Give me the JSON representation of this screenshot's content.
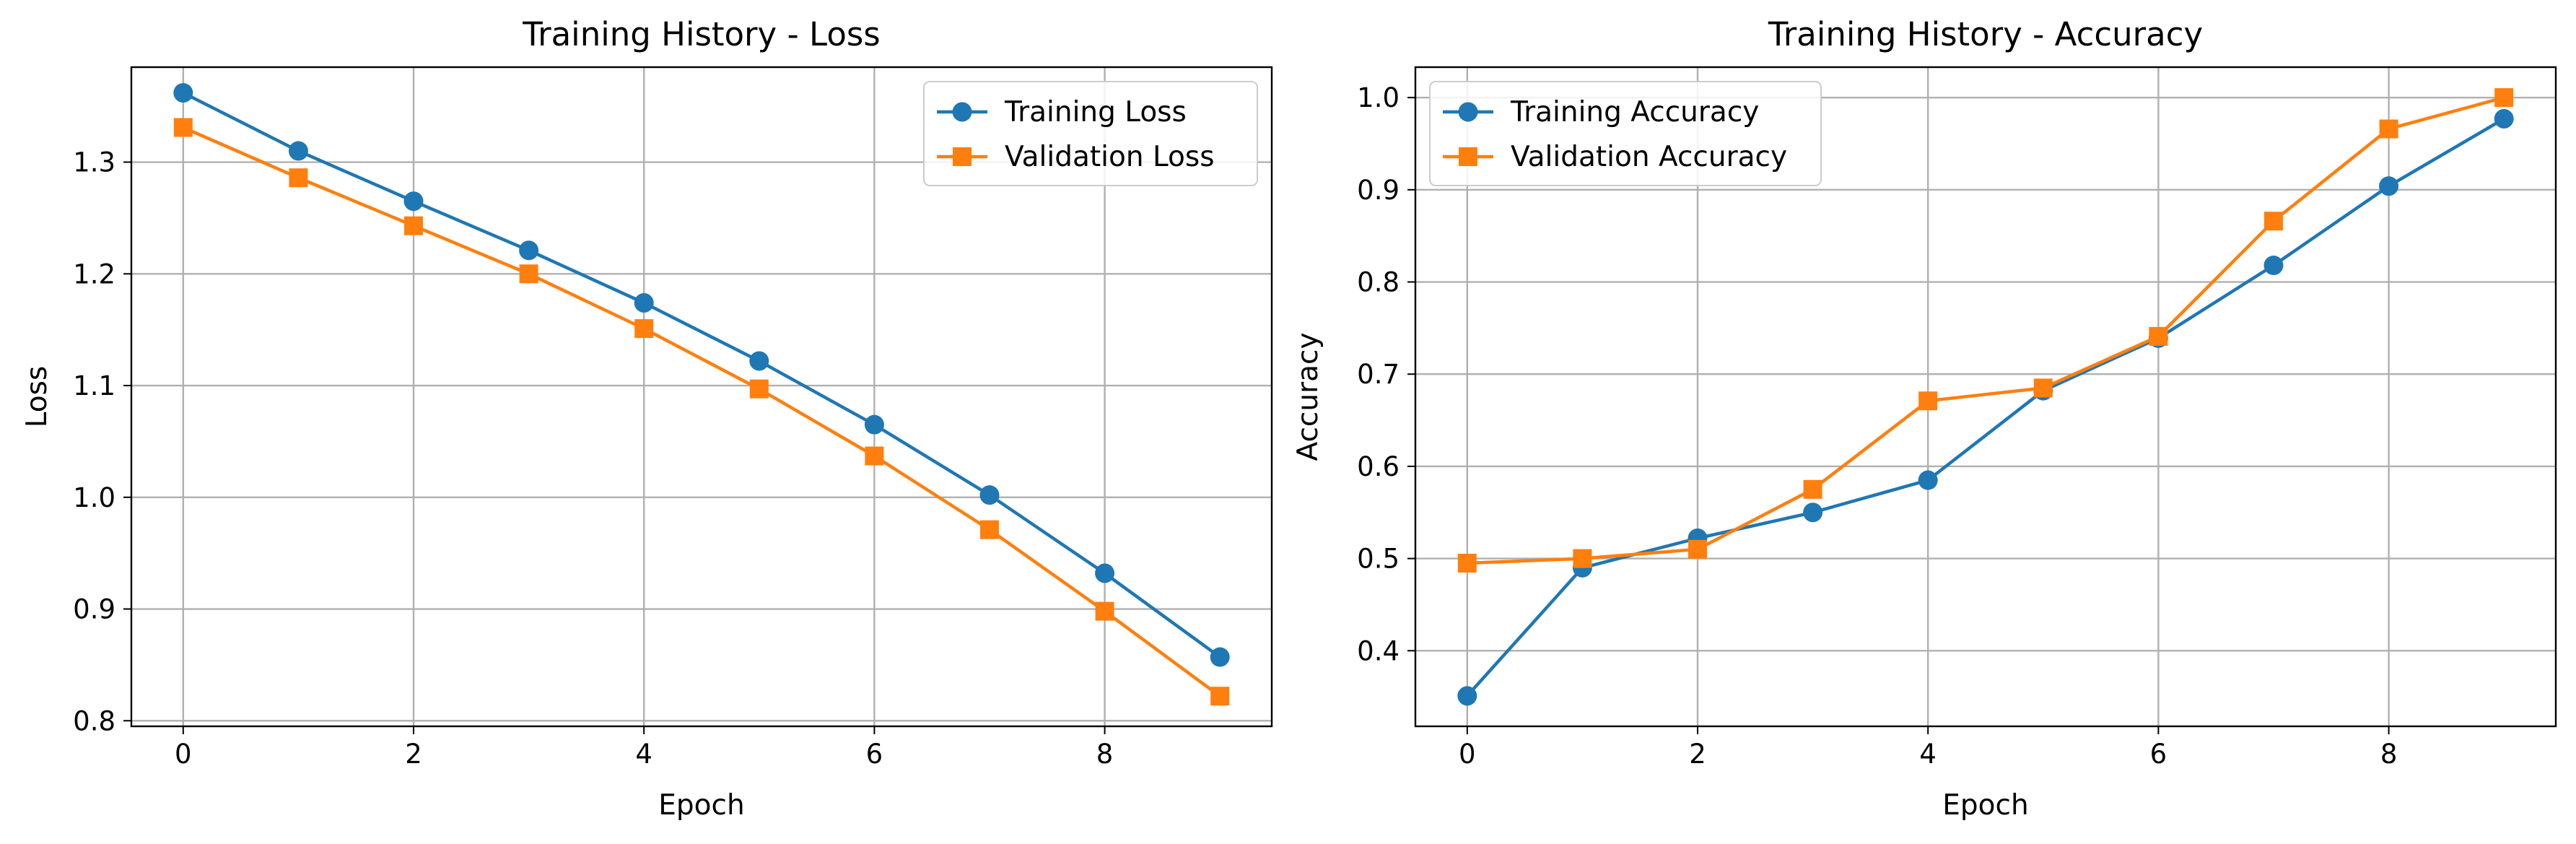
{
  "chart_data": [
    {
      "type": "line",
      "title": "Training History - Loss",
      "xlabel": "Epoch",
      "ylabel": "Loss",
      "xlim": [
        -0.45,
        9.45
      ],
      "ylim": [
        0.795,
        1.385
      ],
      "x": [
        0,
        1,
        2,
        3,
        4,
        5,
        6,
        7,
        8,
        9
      ],
      "xticks": [
        0,
        2,
        4,
        6,
        8
      ],
      "yticks": [
        0.8,
        0.9,
        1.0,
        1.1,
        1.2,
        1.3
      ],
      "grid": true,
      "legend_position": "upper right",
      "series": [
        {
          "name": "Training Loss",
          "color": "#1f77b4",
          "marker": "circle",
          "values": [
            1.362,
            1.31,
            1.265,
            1.221,
            1.174,
            1.122,
            1.065,
            1.002,
            0.932,
            0.857
          ]
        },
        {
          "name": "Validation Loss",
          "color": "#ff7f0e",
          "marker": "square",
          "values": [
            1.331,
            1.286,
            1.243,
            1.2,
            1.151,
            1.097,
            1.037,
            0.971,
            0.898,
            0.822
          ]
        }
      ]
    },
    {
      "type": "line",
      "title": "Training History - Accuracy",
      "xlabel": "Epoch",
      "ylabel": "Accuracy",
      "xlim": [
        -0.45,
        9.45
      ],
      "ylim": [
        0.318,
        1.033
      ],
      "x": [
        0,
        1,
        2,
        3,
        4,
        5,
        6,
        7,
        8,
        9
      ],
      "xticks": [
        0,
        2,
        4,
        6,
        8
      ],
      "yticks": [
        0.4,
        0.5,
        0.6,
        0.7,
        0.8,
        0.9,
        1.0
      ],
      "grid": true,
      "legend_position": "upper left",
      "series": [
        {
          "name": "Training Accuracy",
          "color": "#1f77b4",
          "marker": "circle",
          "values": [
            0.351,
            0.49,
            0.522,
            0.55,
            0.585,
            0.682,
            0.739,
            0.818,
            0.904,
            0.977
          ]
        },
        {
          "name": "Validation Accuracy",
          "color": "#ff7f0e",
          "marker": "square",
          "values": [
            0.495,
            0.5,
            0.51,
            0.575,
            0.671,
            0.685,
            0.741,
            0.866,
            0.966,
            1.0
          ]
        }
      ]
    }
  ]
}
